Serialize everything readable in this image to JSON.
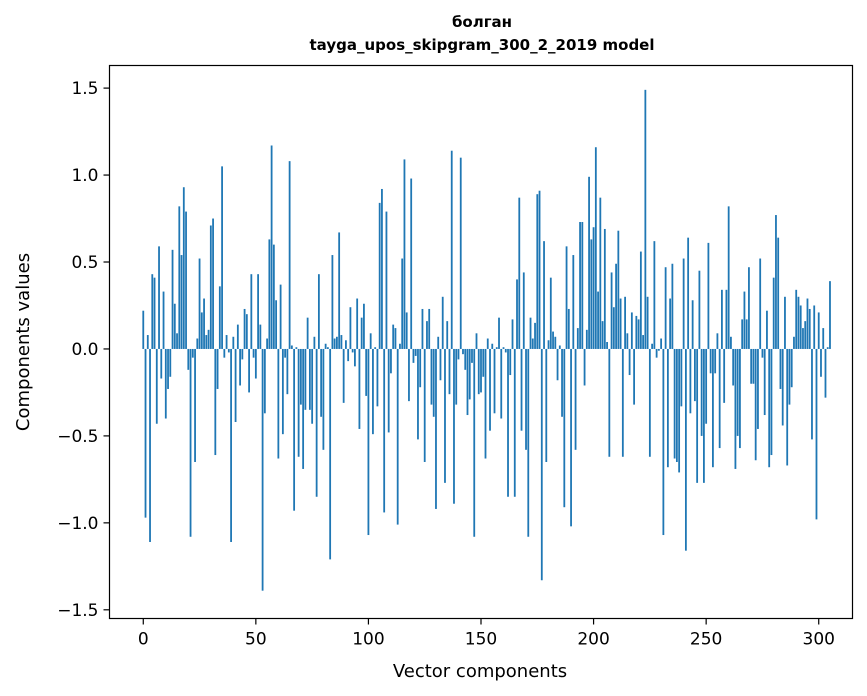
{
  "chart_data": {
    "type": "bar",
    "title_line1": "болган",
    "title_line2": "tayga_upos_skipgram_300_2_2019 model",
    "xlabel": "Vector components",
    "ylabel": "Components values",
    "xlim": [
      -15,
      315
    ],
    "ylim": [
      -1.55,
      1.63
    ],
    "xticks": [
      0,
      50,
      100,
      150,
      200,
      250,
      300
    ],
    "xtick_labels": [
      "0",
      "50",
      "100",
      "150",
      "200",
      "250",
      "300"
    ],
    "yticks": [
      -1.5,
      -1.0,
      -0.5,
      0.0,
      0.5,
      1.0,
      1.5
    ],
    "ytick_labels": [
      "−1.5",
      "−1.0",
      "−0.5",
      "0.0",
      "0.5",
      "1.0",
      "1.5"
    ],
    "bar_color": "#1f77b4",
    "values": [
      0.22,
      -0.97,
      0.08,
      -1.11,
      0.43,
      0.41,
      -0.43,
      0.59,
      -0.17,
      0.33,
      -0.4,
      -0.23,
      -0.16,
      0.57,
      0.26,
      0.09,
      0.82,
      0.54,
      0.93,
      0.79,
      -0.12,
      -1.08,
      -0.05,
      -0.65,
      0.06,
      0.52,
      0.21,
      0.29,
      0.08,
      0.11,
      0.71,
      0.75,
      -0.61,
      -0.23,
      0.36,
      1.05,
      -0.05,
      0.08,
      -0.02,
      -1.11,
      0.07,
      -0.42,
      0.14,
      -0.21,
      -0.06,
      0.23,
      0.2,
      -0.25,
      0.43,
      -0.05,
      -0.17,
      0.43,
      0.14,
      -1.39,
      -0.37,
      0.06,
      0.63,
      1.17,
      0.6,
      0.28,
      -0.63,
      0.37,
      -0.49,
      -0.05,
      -0.26,
      1.08,
      0.02,
      -0.93,
      0.01,
      -0.62,
      -0.32,
      -0.69,
      -0.35,
      0.18,
      -0.35,
      -0.43,
      0.07,
      -0.85,
      0.43,
      -0.39,
      -0.58,
      0.03,
      0.01,
      -1.21,
      0.54,
      0.06,
      0.07,
      0.67,
      0.08,
      -0.31,
      0.05,
      -0.07,
      0.24,
      -0.02,
      -0.1,
      0.29,
      -0.46,
      0.18,
      0.26,
      -0.27,
      -1.07,
      0.09,
      -0.49,
      0.01,
      -0.33,
      0.84,
      0.92,
      -0.94,
      0.79,
      -0.48,
      -0.14,
      0.14,
      0.12,
      -1.01,
      0.03,
      0.52,
      1.09,
      0.21,
      -0.3,
      0.98,
      -0.08,
      -0.04,
      -0.52,
      -0.22,
      0.23,
      -0.65,
      0.16,
      0.23,
      -0.32,
      -0.39,
      -0.92,
      0.07,
      -0.18,
      0.3,
      -0.77,
      0.16,
      -0.26,
      1.14,
      -0.89,
      -0.32,
      -0.06,
      1.1,
      -0.03,
      -0.12,
      -0.38,
      -0.29,
      -0.08,
      -1.08,
      0.09,
      -0.26,
      -0.25,
      -0.16,
      -0.63,
      0.06,
      -0.47,
      0.03,
      -0.37,
      0.01,
      0.18,
      -0.4,
      0.01,
      -0.02,
      -0.85,
      -0.15,
      0.17,
      -0.85,
      0.4,
      0.87,
      -0.47,
      0.44,
      -0.58,
      -1.08,
      0.18,
      0.06,
      0.15,
      0.89,
      0.91,
      -1.33,
      0.62,
      -0.65,
      0.05,
      0.41,
      0.1,
      0.07,
      -0.18,
      0.02,
      -0.39,
      -0.91,
      0.59,
      0.23,
      -1.02,
      0.54,
      -0.58,
      0.12,
      0.73,
      0.73,
      -0.21,
      0.11,
      0.99,
      0.63,
      0.7,
      1.16,
      0.33,
      0.87,
      0.16,
      0.69,
      0.04,
      -0.62,
      0.44,
      0.24,
      0.49,
      0.68,
      0.29,
      -0.62,
      0.3,
      0.09,
      -0.15,
      0.21,
      -0.32,
      0.19,
      0.17,
      0.56,
      0.08,
      1.49,
      0.3,
      -0.62,
      0.03,
      0.62,
      -0.05,
      -0.01,
      0.06,
      -1.07,
      0.47,
      -0.68,
      0.29,
      0.49,
      -0.63,
      -0.65,
      -0.71,
      -0.33,
      0.52,
      -1.16,
      0.64,
      -0.37,
      0.28,
      -0.3,
      -0.77,
      0.45,
      -0.5,
      -0.77,
      -0.43,
      0.61,
      -0.14,
      -0.68,
      -0.14,
      0.09,
      -0.57,
      0.34,
      -0.31,
      0.34,
      0.82,
      0.07,
      -0.21,
      -0.69,
      -0.5,
      -0.57,
      0.17,
      0.33,
      0.17,
      0.47,
      -0.2,
      -0.2,
      -0.64,
      -0.46,
      0.52,
      -0.05,
      -0.38,
      0.22,
      -0.68,
      -0.61,
      0.41,
      0.77,
      0.64,
      -0.23,
      -0.44,
      0.3,
      -0.67,
      -0.32,
      -0.22,
      0.07,
      0.34,
      0.3,
      0.25,
      0.12,
      0.16,
      0.29,
      0.23,
      -0.52,
      0.25,
      -0.98,
      0.21,
      -0.16,
      0.12,
      -0.28,
      0.01,
      0.39
    ]
  }
}
